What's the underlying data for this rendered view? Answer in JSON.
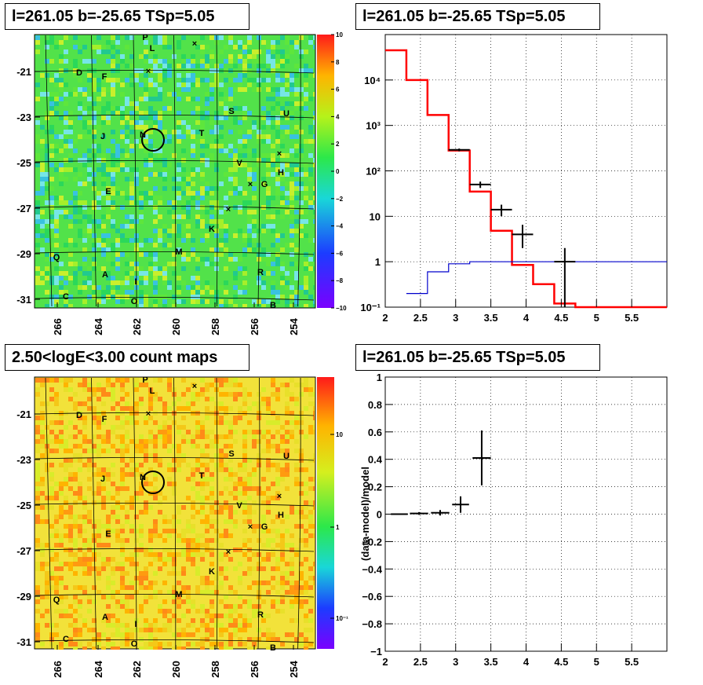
{
  "titles": {
    "top_left": "l=261.05 b=-25.65 TSp=5.05",
    "top_right": "l=261.05 b=-25.65 TSp=5.05",
    "bottom_left": "2.50<logE<3.00 count maps",
    "bottom_right": "l=261.05 b=-25.65 TSp=5.05"
  },
  "map_axes": {
    "x_ticks": [
      "266",
      "264",
      "262",
      "260",
      "258",
      "256",
      "254"
    ],
    "y_ticks": [
      "-21",
      "-23",
      "-25",
      "-27",
      "-29",
      "-31"
    ],
    "tsmap_colorbar": [
      "10",
      "8",
      "6",
      "4",
      "2",
      "0",
      "−2",
      "−4",
      "−6",
      "−8",
      "−10"
    ],
    "count_colorbar": [
      "10",
      "1",
      "10⁻¹"
    ]
  },
  "sources": [
    {
      "label": "P"
    },
    {
      "label": "L"
    },
    {
      "label": "D"
    },
    {
      "label": "F"
    },
    {
      "label": "S"
    },
    {
      "label": "U"
    },
    {
      "label": "J"
    },
    {
      "label": "N"
    },
    {
      "label": "T"
    },
    {
      "label": "V"
    },
    {
      "label": "H"
    },
    {
      "label": "G"
    },
    {
      "label": "E"
    },
    {
      "label": "K"
    },
    {
      "label": "M"
    },
    {
      "label": "Q"
    },
    {
      "label": "A"
    },
    {
      "label": "I"
    },
    {
      "label": "R"
    },
    {
      "label": "C"
    },
    {
      "label": "O"
    },
    {
      "label": "B"
    }
  ],
  "chart_data": [
    {
      "type": "line",
      "panel": "spectrum",
      "title": "l=261.05 b=-25.65 TSp=5.05",
      "y_scale": "log",
      "xlim": [
        2,
        6
      ],
      "ylim": [
        0.1,
        100000
      ],
      "x_ticks": [
        "2",
        "2.5",
        "3",
        "3.5",
        "4",
        "4.5",
        "5",
        "5.5"
      ],
      "y_ticks": [
        "10⁻¹",
        "1",
        "10",
        "10²",
        "10³",
        "10⁴"
      ],
      "grid": true,
      "series": [
        {
          "color": "#ff0000",
          "bins": [
            [
              2,
              2.3,
              45000
            ],
            [
              2.3,
              2.6,
              10000
            ],
            [
              2.6,
              2.9,
              1700
            ],
            [
              2.9,
              3.2,
              280
            ],
            [
              3.2,
              3.5,
              35
            ],
            [
              3.5,
              3.8,
              4.8
            ],
            [
              3.8,
              4.1,
              0.85
            ],
            [
              4.1,
              4.4,
              0.32
            ],
            [
              4.4,
              4.7,
              0.12
            ],
            [
              4.7,
              6,
              0.1
            ]
          ]
        },
        {
          "color": "#0000cc",
          "bins": [
            [
              2.3,
              2.6,
              0.2
            ],
            [
              2.6,
              2.9,
              0.6
            ],
            [
              2.9,
              3.2,
              0.9
            ],
            [
              3.2,
              3.5,
              1
            ],
            [
              3.5,
              6,
              1
            ]
          ]
        },
        {
          "color": "#000000",
          "points": [
            {
              "x": 3.05,
              "y": 290,
              "xerr": 0.15,
              "ylo": 270,
              "yhi": 310
            },
            {
              "x": 3.35,
              "y": 50,
              "xerr": 0.15,
              "ylo": 42,
              "yhi": 58
            },
            {
              "x": 3.65,
              "y": 14,
              "xerr": 0.15,
              "ylo": 10,
              "yhi": 18
            },
            {
              "x": 3.95,
              "y": 4,
              "xerr": 0.15,
              "ylo": 2,
              "yhi": 6.5
            },
            {
              "x": 4.55,
              "y": 1,
              "xerr": 0.15,
              "ylo": 0.1,
              "yhi": 2
            }
          ]
        }
      ]
    },
    {
      "type": "scatter",
      "panel": "residuals",
      "title": "l=261.05 b=-25.65 TSp=5.05",
      "ylabel": "(data-model)/model",
      "xlim": [
        2,
        6
      ],
      "ylim": [
        -1,
        1
      ],
      "x_ticks": [
        "2",
        "2.5",
        "3",
        "3.5",
        "4",
        "4.5",
        "5",
        "5.5"
      ],
      "y_ticks": [
        "1",
        "0.8",
        "0.6",
        "0.4",
        "0.2",
        "0",
        "−0.2",
        "−0.4",
        "−0.6",
        "−0.8",
        "−1"
      ],
      "grid": true,
      "points": [
        {
          "x": 2.2,
          "y": 0.0,
          "xerr": 0.12,
          "yerr": 0.005
        },
        {
          "x": 2.48,
          "y": 0.005,
          "xerr": 0.13,
          "yerr": 0.01
        },
        {
          "x": 2.78,
          "y": 0.01,
          "xerr": 0.13,
          "yerr": 0.02
        },
        {
          "x": 3.07,
          "y": 0.07,
          "xerr": 0.12,
          "yerr": 0.06
        },
        {
          "x": 3.37,
          "y": 0.41,
          "xerr": 0.13,
          "yerr": 0.2
        }
      ]
    }
  ]
}
